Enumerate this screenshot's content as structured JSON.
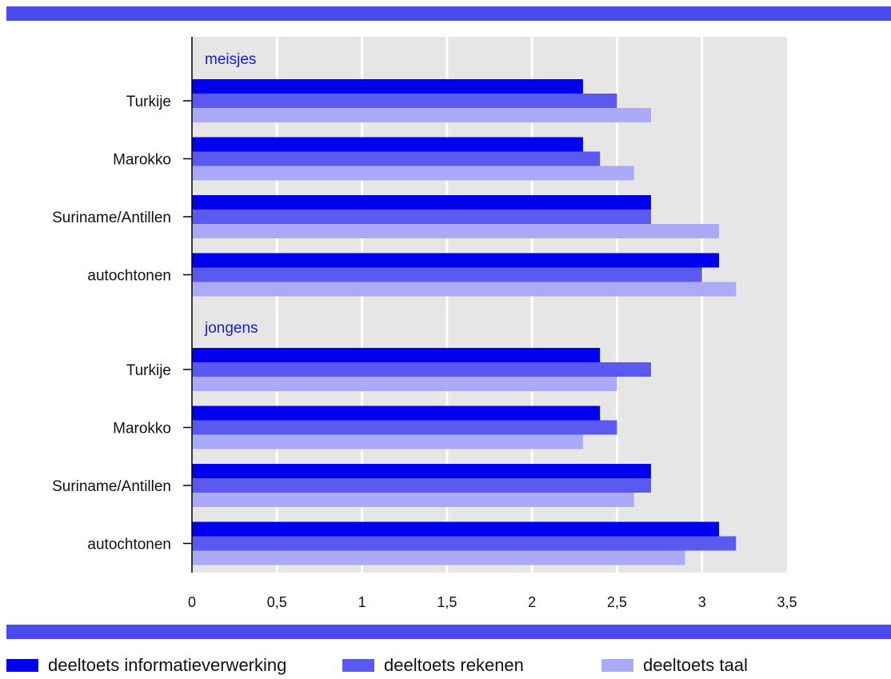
{
  "colors": {
    "band": "#4a4aee",
    "plot_bg": "#e6e6e6",
    "grid": "#ffffff",
    "axis": "#000000",
    "group_label": "#1a1acc",
    "series": [
      "#0000ee",
      "#5a5af0",
      "#aaaaf8"
    ]
  },
  "chart_data": {
    "type": "bar",
    "orientation": "horizontal",
    "x_ticks": [
      "0",
      "0,5",
      "1",
      "1,5",
      "2",
      "2,5",
      "3",
      "3,5"
    ],
    "xlim": [
      0,
      3.5
    ],
    "grid": true,
    "legend_position": "bottom",
    "series": [
      {
        "name": "deeltoets informatieverwerking"
      },
      {
        "name": "deeltoets rekenen"
      },
      {
        "name": "deeltoets taal"
      }
    ],
    "groups": [
      {
        "label": "meisjes",
        "categories": [
          {
            "label": "Turkije",
            "values": [
              2.3,
              2.5,
              2.7
            ]
          },
          {
            "label": "Marokko",
            "values": [
              2.3,
              2.4,
              2.6
            ]
          },
          {
            "label": "Suriname/Antillen",
            "values": [
              2.7,
              2.7,
              3.1
            ]
          },
          {
            "label": "autochtonen",
            "values": [
              3.1,
              3.0,
              3.2
            ]
          }
        ]
      },
      {
        "label": "jongens",
        "categories": [
          {
            "label": "Turkije",
            "values": [
              2.4,
              2.7,
              2.5
            ]
          },
          {
            "label": "Marokko",
            "values": [
              2.4,
              2.5,
              2.3
            ]
          },
          {
            "label": "Suriname/Antillen",
            "values": [
              2.7,
              2.7,
              2.6
            ]
          },
          {
            "label": "autochtonen",
            "values": [
              3.1,
              3.2,
              2.9
            ]
          }
        ]
      }
    ]
  },
  "legend": {
    "items": [
      {
        "label": "deeltoets informatieverwerking",
        "color_index": 0
      },
      {
        "label": "deeltoets rekenen",
        "color_index": 1
      },
      {
        "label": "deeltoets taal",
        "color_index": 2
      }
    ]
  }
}
